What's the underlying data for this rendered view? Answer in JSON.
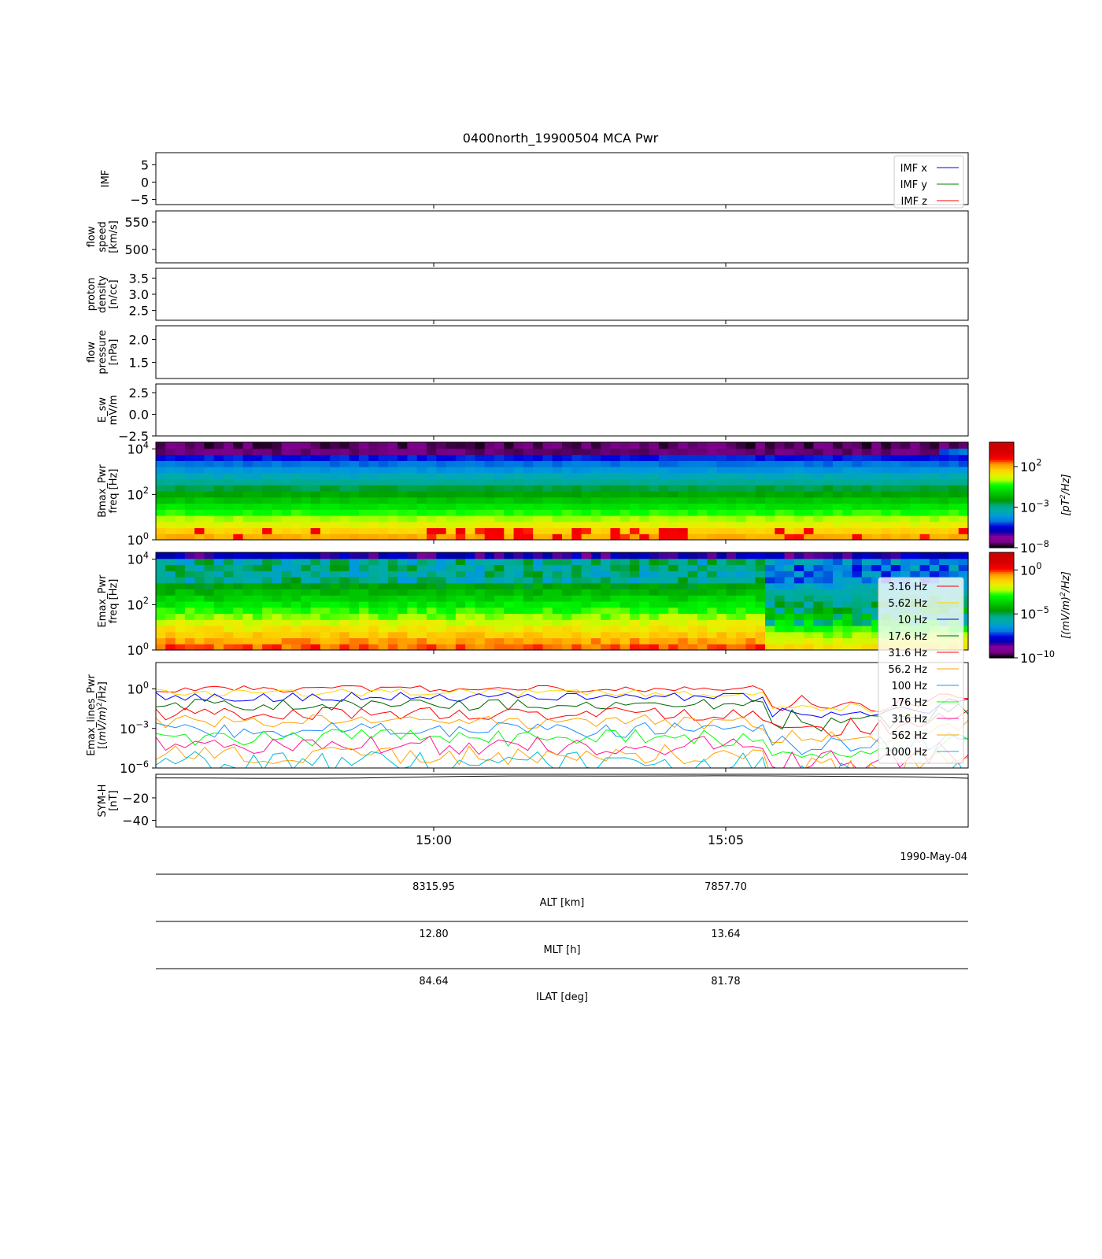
{
  "figure": {
    "title": "0400north_19900504 MCA Pwr",
    "date_label": "1990-May-04"
  },
  "chart_data": [
    {
      "type": "line",
      "panel": "imf",
      "ylabel": "IMF",
      "yticks": [
        "5",
        "0",
        "−5"
      ],
      "ylim": [
        -6.5,
        8.5
      ],
      "legend": "top-right",
      "series": [
        {
          "name": "IMF x",
          "color": "#0000ff",
          "values": []
        },
        {
          "name": "IMF y",
          "color": "#008000",
          "values": []
        },
        {
          "name": "IMF z",
          "color": "#ff0000",
          "values": []
        }
      ]
    },
    {
      "type": "line",
      "panel": "flow_speed",
      "ylabel": [
        "flow",
        "speed",
        "[km/s]"
      ],
      "yticks": [
        "550",
        "500"
      ],
      "ylim": [
        476,
        570
      ],
      "values": []
    },
    {
      "type": "line",
      "panel": "proton_density",
      "ylabel": [
        "proton",
        "density",
        "[n/cc]"
      ],
      "yticks": [
        "3.5",
        "3.0",
        "2.5"
      ],
      "ylim": [
        2.2,
        3.8
      ],
      "values": []
    },
    {
      "type": "line",
      "panel": "flow_pressure",
      "ylabel": [
        "flow",
        "pressure",
        "[nPa]"
      ],
      "yticks": [
        "2.0",
        "1.5"
      ],
      "ylim": [
        1.15,
        2.3
      ],
      "values": []
    },
    {
      "type": "line",
      "panel": "e_sw",
      "ylabel": [
        "E_sw",
        "mV/m"
      ],
      "yticks": [
        "2.5",
        "0.0",
        "−2.5"
      ],
      "ylim": [
        -2.5,
        3.5
      ],
      "values": []
    },
    {
      "type": "heatmap",
      "panel": "bmax_pwr",
      "ylabel": [
        "Bmax_Pwr",
        "freq [Hz]"
      ],
      "yscale": "log",
      "ylim": [
        1,
        20000
      ],
      "yticks": [
        "10^0",
        "10^2",
        "10^4"
      ],
      "colorbar": {
        "label": "[pT^2/Hz]",
        "scale": "log",
        "ticks": [
          "10^2",
          "10^-3",
          "10^-8"
        ],
        "range": [
          -8,
          5
        ],
        "colormap": "nipy_spectral"
      },
      "time_bins": 84,
      "freq_bins": 16
    },
    {
      "type": "heatmap",
      "panel": "emax_pwr",
      "ylabel": [
        "Emax_Pwr",
        "freq [Hz]"
      ],
      "yscale": "log",
      "ylim": [
        1,
        20000
      ],
      "yticks": [
        "10^0",
        "10^2",
        "10^4"
      ],
      "colorbar": {
        "label": "[(mV/m)^2/Hz]",
        "scale": "log",
        "ticks": [
          "10^0",
          "10^-5",
          "10^-10"
        ],
        "range": [
          -10,
          2
        ],
        "colormap": "nipy_spectral"
      },
      "time_bins": 84,
      "freq_bins": 16
    },
    {
      "type": "line",
      "panel": "emax_lines_pwr",
      "ylabel": [
        "Emax_lines_Pwr",
        "[(mV/m)^2/Hz]"
      ],
      "yscale": "log",
      "ylim": [
        -6,
        2
      ],
      "yticks": [
        "10^0",
        "10^-3",
        "10^-6"
      ],
      "legend": "right",
      "series": [
        {
          "name": "3.16 Hz",
          "color": "#ff0000",
          "mean_log": 0.0
        },
        {
          "name": "5.62 Hz",
          "color": "#ffd700",
          "mean_log": -0.3
        },
        {
          "name": "10 Hz",
          "color": "#0000ff",
          "mean_log": -0.6
        },
        {
          "name": "17.6 Hz",
          "color": "#006400",
          "mean_log": -1.2
        },
        {
          "name": "31.6 Hz",
          "color": "#ff0000",
          "mean_log": -1.9
        },
        {
          "name": "56.2 Hz",
          "color": "#ffa500",
          "mean_log": -2.5
        },
        {
          "name": "100 Hz",
          "color": "#1e90ff",
          "mean_log": -3.1
        },
        {
          "name": "176 Hz",
          "color": "#00ff00",
          "mean_log": -3.7
        },
        {
          "name": "316 Hz",
          "color": "#ff1493",
          "mean_log": -4.3
        },
        {
          "name": "562 Hz",
          "color": "#ffa500",
          "mean_log": -5.0
        },
        {
          "name": "1000 Hz",
          "color": "#00bcd4",
          "mean_log": -5.6
        }
      ]
    },
    {
      "type": "line",
      "panel": "sym_h",
      "ylabel": [
        "SYM-H",
        "[nT]"
      ],
      "yticks": [
        "−20",
        "−40"
      ],
      "ylim": [
        -46,
        1
      ],
      "values": [
        -2.2,
        -2.4,
        -2.6,
        -2.6,
        -2.3,
        -1.6,
        -0.8,
        -0.5,
        -0.5,
        -0.6,
        -0.5,
        -0.3,
        -0.4,
        -0.7,
        -0.9,
        -1.4,
        -2.5
      ],
      "color": "#000000"
    }
  ],
  "time_axis": {
    "ticks": [
      {
        "label": "15:00",
        "alt": "8315.95",
        "mlt": "12.80",
        "ilat": "84.64"
      },
      {
        "label": "15:05",
        "alt": "7857.70",
        "mlt": "13.64",
        "ilat": "81.78"
      }
    ],
    "extra_axes": [
      {
        "key": "alt",
        "label": "ALT [km]"
      },
      {
        "key": "mlt",
        "label": "MLT [h]"
      },
      {
        "key": "ilat",
        "label": "ILAT [deg]"
      }
    ]
  }
}
